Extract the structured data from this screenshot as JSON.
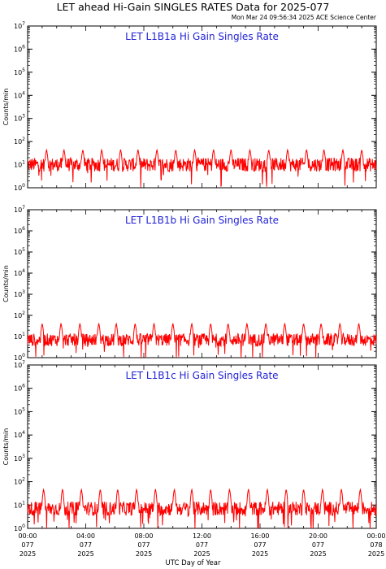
{
  "header": {
    "title": "LET ahead Hi-Gain SINGLES RATES Data for 2025-077",
    "timestamp": "Mon Mar 24 09:56:34 2025 ACE Science Center"
  },
  "colors": {
    "series": "#ff0000",
    "panel_title": "#1f1fd6",
    "axes": "#000000"
  },
  "chart_data": [
    {
      "type": "line",
      "title": "LET L1B1a Hi Gain Singles Rate",
      "ylabel": "Counts/min",
      "yscale": "log",
      "ylim": [
        1,
        10000000
      ],
      "yticks": [
        [
          "10",
          "0"
        ],
        [
          "10",
          "1"
        ],
        [
          "10",
          "2"
        ],
        [
          "10",
          "3"
        ],
        [
          "10",
          "4"
        ],
        [
          "10",
          "5"
        ],
        [
          "10",
          "6"
        ],
        [
          "10",
          "7"
        ]
      ],
      "xlim": [
        0,
        24
      ],
      "baseline": 10,
      "spikes_hours": [
        1.3,
        2.5,
        3.8,
        5.1,
        6.4,
        7.6,
        8.9,
        10.2,
        11.5,
        12.8,
        14.0,
        15.3,
        16.6,
        17.9,
        19.2,
        20.4,
        21.7,
        23.0
      ],
      "spike_peak": 45
    },
    {
      "type": "line",
      "title": "LET L1B1b Hi Gain Singles Rate",
      "ylabel": "Counts/min",
      "yscale": "log",
      "ylim": [
        1,
        10000000
      ],
      "yticks": [
        [
          "10",
          "0"
        ],
        [
          "10",
          "1"
        ],
        [
          "10",
          "2"
        ],
        [
          "10",
          "3"
        ],
        [
          "10",
          "4"
        ],
        [
          "10",
          "5"
        ],
        [
          "10",
          "6"
        ],
        [
          "10",
          "7"
        ]
      ],
      "xlim": [
        0,
        24
      ],
      "baseline": 7,
      "spikes_hours": [
        1.0,
        2.3,
        3.6,
        4.9,
        6.1,
        7.4,
        8.7,
        10.0,
        11.3,
        12.6,
        13.8,
        15.1,
        16.4,
        17.7,
        19.0,
        20.2,
        21.5,
        22.8
      ],
      "spike_peak": 42
    },
    {
      "type": "line",
      "title": "LET L1B1c Hi Gain Singles Rate",
      "ylabel": "Counts/min",
      "yscale": "log",
      "ylim": [
        1,
        10000000
      ],
      "yticks": [
        [
          "10",
          "0"
        ],
        [
          "10",
          "1"
        ],
        [
          "10",
          "2"
        ],
        [
          "10",
          "3"
        ],
        [
          "10",
          "4"
        ],
        [
          "10",
          "5"
        ],
        [
          "10",
          "6"
        ],
        [
          "10",
          "7"
        ]
      ],
      "xlim": [
        0,
        24
      ],
      "baseline": 7,
      "spikes_hours": [
        1.1,
        2.4,
        3.7,
        5.0,
        6.2,
        7.5,
        8.8,
        10.1,
        11.3,
        12.6,
        13.9,
        15.2,
        16.5,
        17.8,
        19.0,
        20.3,
        21.6,
        22.9
      ],
      "spike_peak": 48
    }
  ],
  "x_axis": {
    "label": "UTC Day of Year",
    "ticks": [
      {
        "hour": 0,
        "time": "00:00",
        "doy": "077",
        "year": "2025"
      },
      {
        "hour": 4,
        "time": "04:00",
        "doy": "077",
        "year": "2025"
      },
      {
        "hour": 8,
        "time": "08:00",
        "doy": "077",
        "year": "2025"
      },
      {
        "hour": 12,
        "time": "12:00",
        "doy": "077",
        "year": "2025"
      },
      {
        "hour": 16,
        "time": "16:00",
        "doy": "077",
        "year": "2025"
      },
      {
        "hour": 20,
        "time": "20:00",
        "doy": "077",
        "year": "2025"
      },
      {
        "hour": 24,
        "time": "00:00",
        "doy": "078",
        "year": "2025"
      }
    ]
  }
}
